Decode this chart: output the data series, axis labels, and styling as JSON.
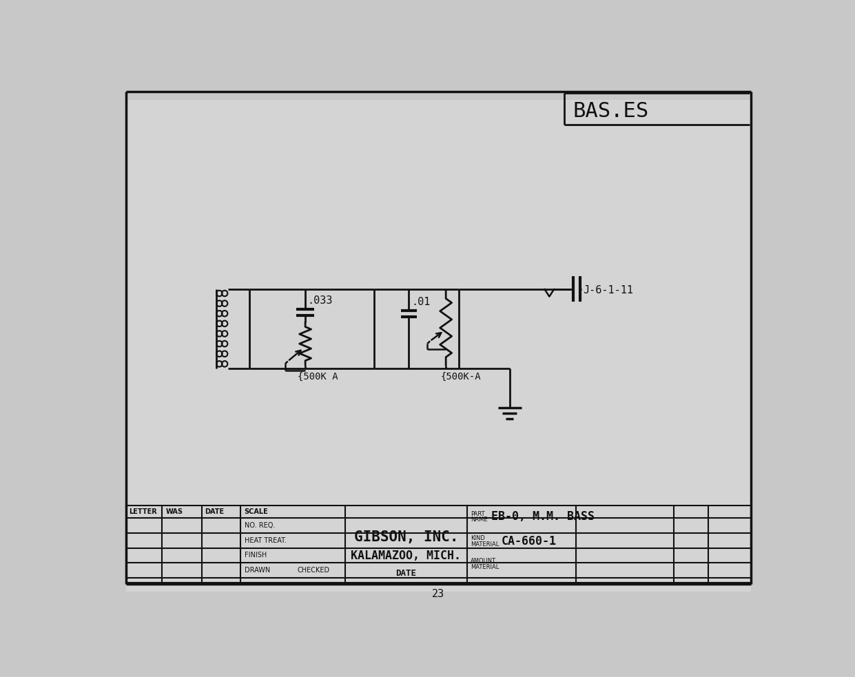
{
  "bg_color": "#c8c8c8",
  "paper_color": "#d4d4d4",
  "line_color": "#111111",
  "title_box_text": "BAS.ES",
  "company_name": "GIBSON, INC.",
  "company_city": "KALAMAZOO, MICH.",
  "part_name_label": "EB-0, M.M. BASS",
  "kind_material": "CA-660-1",
  "page_number": "23"
}
